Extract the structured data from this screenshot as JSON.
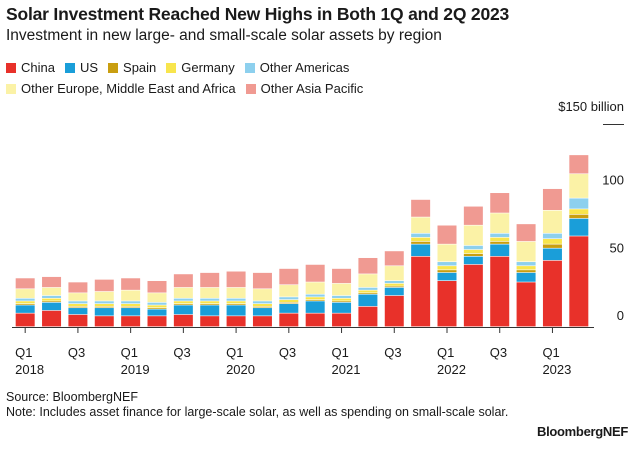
{
  "header": {
    "title": "Solar Investment Reached New Highs in Both 1Q and 2Q 2023",
    "subtitle": "Investment in new large- and small-scale solar assets by region"
  },
  "footer": {
    "source": "Source: BloombergNEF",
    "note": "Note: Includes asset finance for large-scale solar, as well as spending on small-scale solar.",
    "brand": "BloombergNEF"
  },
  "chart_data": {
    "type": "bar",
    "stacked": true,
    "y_unit_label": "$150 billion",
    "ylim": [
      0,
      150
    ],
    "yticks": [
      0,
      50,
      100
    ],
    "ytick_labels": [
      "0",
      "50",
      "100",
      "$150 billion"
    ],
    "grid": false,
    "legend_position": "top-left",
    "categories": [
      "1Q2018",
      "2Q2018",
      "3Q2018",
      "4Q2018",
      "1Q2019",
      "2Q2019",
      "3Q2019",
      "4Q2019",
      "1Q2020",
      "2Q2020",
      "3Q2020",
      "4Q2020",
      "1Q2021",
      "2Q2021",
      "3Q2021",
      "4Q2021",
      "1Q2022",
      "2Q2022",
      "3Q2022",
      "4Q2022",
      "1Q2023",
      "2Q2023"
    ],
    "x_tick_labels": [
      {
        "index": 0,
        "quarter": "Q1",
        "year": "2018"
      },
      {
        "index": 2,
        "quarter": "Q3",
        "year": ""
      },
      {
        "index": 4,
        "quarter": "Q1",
        "year": "2019"
      },
      {
        "index": 6,
        "quarter": "Q3",
        "year": ""
      },
      {
        "index": 8,
        "quarter": "Q1",
        "year": "2020"
      },
      {
        "index": 10,
        "quarter": "Q3",
        "year": ""
      },
      {
        "index": 12,
        "quarter": "Q1",
        "year": "2021"
      },
      {
        "index": 14,
        "quarter": "Q3",
        "year": ""
      },
      {
        "index": 16,
        "quarter": "Q1",
        "year": "2022"
      },
      {
        "index": 18,
        "quarter": "Q3",
        "year": ""
      },
      {
        "index": 20,
        "quarter": "Q1",
        "year": "2023"
      }
    ],
    "series": [
      {
        "name": "China",
        "color": "#e8312a",
        "values": [
          10,
          12,
          9,
          8,
          8,
          8,
          9,
          8,
          8,
          8,
          10,
          10,
          10,
          15,
          23,
          52,
          34,
          46,
          52,
          33,
          49,
          67
        ]
      },
      {
        "name": "US",
        "color": "#1a9ed9",
        "values": [
          6,
          6,
          5,
          6,
          6,
          5,
          7,
          8,
          8,
          6,
          7,
          9,
          8,
          9,
          6,
          9,
          6,
          6,
          9,
          7,
          9,
          13
        ]
      },
      {
        "name": "Spain",
        "color": "#c99e10",
        "values": [
          1,
          1,
          1,
          1,
          1,
          1,
          1,
          1,
          1,
          1,
          1,
          1,
          1,
          1,
          1,
          2,
          2,
          2,
          2,
          2,
          3,
          3
        ]
      },
      {
        "name": "Germany",
        "color": "#f8e54d",
        "values": [
          2,
          2,
          2,
          2,
          2,
          2,
          2,
          2,
          2,
          2,
          2,
          2,
          2,
          2,
          2,
          3,
          3,
          3,
          3,
          3,
          4,
          4
        ]
      },
      {
        "name": "Other Americas",
        "color": "#8dd0ee",
        "values": [
          2,
          2,
          2,
          2,
          2,
          2,
          2,
          2,
          2,
          2,
          2,
          2,
          2,
          2,
          2,
          3,
          3,
          3,
          3,
          3,
          4,
          8
        ]
      },
      {
        "name": "Other Europe, Middle East and Africa",
        "color": "#fbf2a6",
        "values": [
          7,
          6,
          6,
          7,
          8,
          7,
          8,
          8,
          8,
          9,
          9,
          9,
          9,
          10,
          11,
          12,
          13,
          15,
          15,
          15,
          17,
          18
        ]
      },
      {
        "name": "Other Asia Pacific",
        "color": "#f09a92",
        "values": [
          8,
          8,
          8,
          9,
          9,
          9,
          10,
          11,
          12,
          12,
          12,
          13,
          11,
          12,
          11,
          13,
          14,
          14,
          15,
          13,
          16,
          14
        ]
      }
    ]
  }
}
